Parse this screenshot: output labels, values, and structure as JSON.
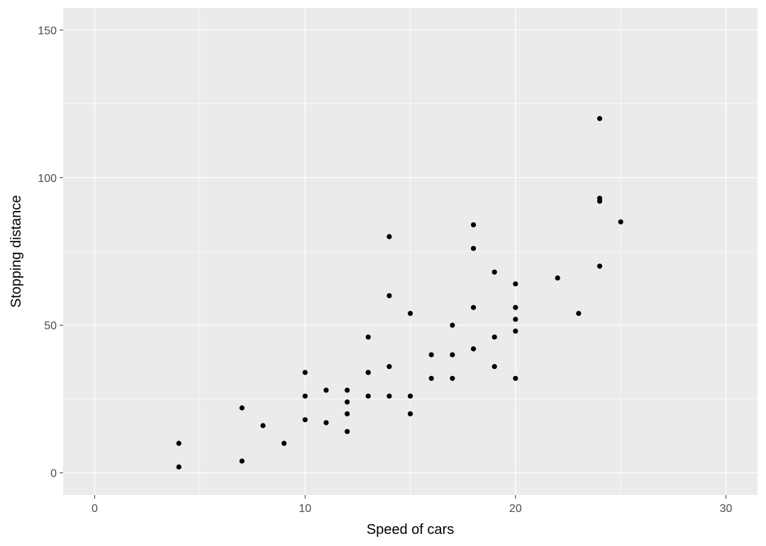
{
  "chart_data": {
    "type": "scatter",
    "title": "",
    "xlabel": "Speed of cars",
    "ylabel": "Stopping distance",
    "xlim": [
      -1.5,
      31.5
    ],
    "ylim": [
      -7.5,
      157.5
    ],
    "x_ticks": [
      0,
      10,
      20,
      30
    ],
    "x_tick_labels": [
      "0",
      "10",
      "20",
      "30"
    ],
    "y_ticks": [
      0,
      50,
      100,
      150
    ],
    "y_tick_labels": [
      "0",
      "50",
      "100",
      "150"
    ],
    "grid": true,
    "legend": "none",
    "colors": {
      "panel": "#ebebeb",
      "grid": "#ffffff",
      "point": "#000000"
    },
    "x": [
      4,
      4,
      7,
      7,
      8,
      9,
      10,
      10,
      10,
      11,
      11,
      12,
      12,
      12,
      12,
      13,
      13,
      13,
      13,
      14,
      14,
      14,
      14,
      15,
      15,
      15,
      16,
      16,
      17,
      17,
      17,
      18,
      18,
      18,
      18,
      19,
      19,
      19,
      20,
      20,
      20,
      20,
      20,
      22,
      23,
      24,
      24,
      24,
      24,
      25
    ],
    "y": [
      2,
      10,
      4,
      22,
      16,
      10,
      18,
      26,
      34,
      17,
      28,
      14,
      20,
      24,
      28,
      26,
      34,
      34,
      46,
      26,
      36,
      60,
      80,
      20,
      26,
      54,
      32,
      40,
      32,
      40,
      50,
      42,
      56,
      76,
      84,
      36,
      46,
      68,
      32,
      48,
      52,
      56,
      64,
      66,
      54,
      70,
      92,
      93,
      120,
      85
    ]
  }
}
